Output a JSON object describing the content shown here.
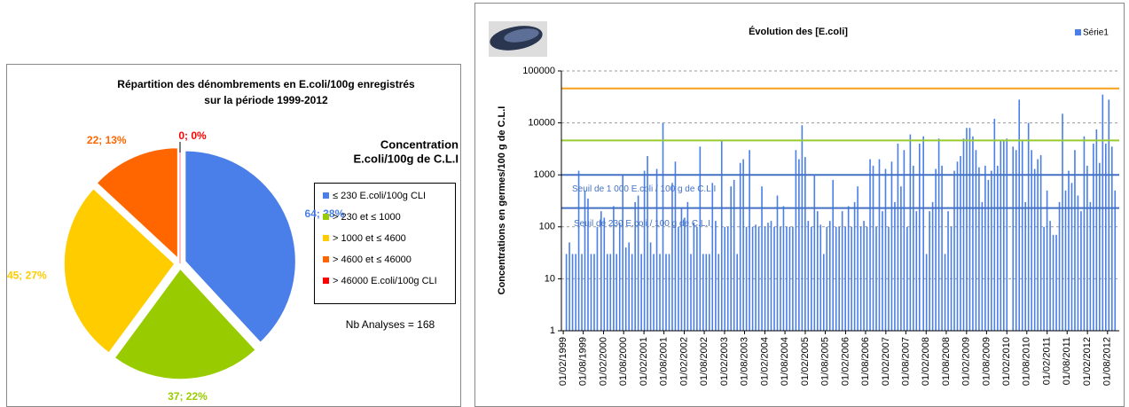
{
  "chart_data": [
    {
      "type": "pie",
      "title_lines": [
        "Répartition des dénombrements en E.coli/100g enregistrés",
        "sur la période 1999-2012"
      ],
      "legend_title_lines": [
        "Concentration",
        "E.coli/100g de C.L.I"
      ],
      "categories": [
        "≤ 230 E.coli/100g CLI",
        "> 230 et ≤ 1000",
        "> 1000 et ≤ 4600",
        "> 4600 et ≤ 46000",
        "> 46000 E.coli/100g CLI"
      ],
      "values": [
        64,
        37,
        45,
        22,
        0
      ],
      "value_labels": [
        "64; 38%",
        "37; 22%",
        "45; 27%",
        "22; 13%",
        "0; 0%"
      ],
      "colors": [
        "#4a7ee8",
        "#99cc00",
        "#ffcc00",
        "#ff6600",
        "#ff0000"
      ],
      "annotation": "Nb Analyses = 168"
    },
    {
      "type": "bar",
      "title": "Évolution des [E.coli]",
      "y_label": "Concentrations en germes/100 g de C.L.I",
      "log_scale": true,
      "grid": true,
      "ylim": [
        1,
        100000
      ],
      "yticks": [
        1,
        10,
        100,
        1000,
        10000,
        100000
      ],
      "xlim": [
        "15/01/1999",
        "15/11/2012"
      ],
      "xticks": [
        "01/02/1999",
        "01/08/1999",
        "01/02/2000",
        "01/08/2000",
        "01/02/2001",
        "01/08/2001",
        "01/02/2002",
        "01/08/2002",
        "01/02/2003",
        "01/08/2003",
        "01/02/2004",
        "01/08/2004",
        "01/02/2005",
        "01/08/2005",
        "01/02/2006",
        "01/08/2006",
        "01/02/2007",
        "01/08/2007",
        "01/02/2008",
        "01/08/2008",
        "01/02/2009",
        "01/08/2009",
        "01/02/2010",
        "01/08/2010",
        "01/02/2011",
        "01/08/2011",
        "01/02/2012",
        "01/08/2012"
      ],
      "reference_lines": [
        {
          "value": 46000,
          "color": "#f7a11a"
        },
        {
          "value": 4600,
          "color": "#99cc33"
        },
        {
          "value": 1000,
          "color": "#4472c4",
          "label": "Seuil de 1 000 E.coli / 100 g de C.L.I"
        },
        {
          "value": 230,
          "color": "#4472c4",
          "label": "Seuil de 230 E.coli / 100 g de C.L.I"
        }
      ],
      "series": [
        {
          "name": "Série1",
          "color": "#4a7ee8",
          "x": [
            "01/03/1999",
            "29/03/1999",
            "26/04/1999",
            "25/05/1999",
            "21/06/1999",
            "19/07/1999",
            "16/08/1999",
            "13/09/1999",
            "11/10/1999",
            "08/11/1999",
            "06/12/1999",
            "10/01/2000",
            "07/02/2000",
            "06/03/2000",
            "03/04/2000",
            "02/05/2000",
            "29/05/2000",
            "26/06/2000",
            "24/07/2000",
            "21/08/2000",
            "18/09/2000",
            "16/10/2000",
            "13/11/2000",
            "11/12/2000",
            "08/01/2001",
            "05/02/2001",
            "05/03/2001",
            "02/04/2001",
            "30/04/2001",
            "28/05/2001",
            "25/06/2001",
            "23/07/2001",
            "20/08/2001",
            "17/09/2001",
            "15/10/2001",
            "12/11/2001",
            "10/12/2001",
            "07/01/2002",
            "04/02/2002",
            "04/03/2002",
            "02/04/2002",
            "29/04/2002",
            "27/05/2002",
            "24/06/2002",
            "22/07/2002",
            "19/08/2002",
            "16/09/2002",
            "14/10/2002",
            "12/11/2002",
            "09/12/2002",
            "06/01/2003",
            "03/02/2003",
            "03/03/2003",
            "31/03/2003",
            "28/04/2003",
            "26/05/2003",
            "23/06/2003",
            "21/07/2003",
            "18/08/2003",
            "15/09/2003",
            "13/10/2003",
            "10/11/2003",
            "08/12/2003",
            "05/01/2004",
            "02/02/2004",
            "01/03/2004",
            "29/03/2004",
            "26/04/2004",
            "24/05/2004",
            "21/06/2004",
            "19/07/2004",
            "16/08/2004",
            "13/09/2004",
            "11/10/2004",
            "08/11/2004",
            "06/12/2004",
            "03/01/2005",
            "31/01/2005",
            "28/02/2005",
            "28/03/2005",
            "25/04/2005",
            "23/05/2005",
            "20/06/2005",
            "18/07/2005",
            "15/08/2005",
            "12/09/2005",
            "10/10/2005",
            "07/11/2005",
            "05/12/2005",
            "02/01/2006",
            "30/01/2006",
            "27/02/2006",
            "27/03/2006",
            "24/04/2006",
            "22/05/2006",
            "19/06/2006",
            "17/07/2006",
            "14/08/2006",
            "11/09/2006",
            "09/10/2006",
            "06/11/2006",
            "04/12/2006",
            "01/01/2007",
            "29/01/2007",
            "26/02/2007",
            "26/03/2007",
            "23/04/2007",
            "21/05/2007",
            "18/06/2007",
            "16/07/2007",
            "13/08/2007",
            "10/09/2007",
            "08/10/2007",
            "05/11/2007",
            "03/12/2007",
            "07/01/2008",
            "04/02/2008",
            "03/03/2008",
            "31/03/2008",
            "28/04/2008",
            "26/05/2008",
            "23/06/2008",
            "21/07/2008",
            "18/08/2008",
            "15/09/2008",
            "13/10/2008",
            "10/11/2008",
            "08/12/2008",
            "05/01/2009",
            "02/02/2009",
            "02/03/2009",
            "30/03/2009",
            "27/04/2009",
            "25/05/2009",
            "22/06/2009",
            "20/07/2009",
            "17/08/2009",
            "14/09/2009",
            "12/10/2009",
            "09/11/2009",
            "07/12/2009",
            "04/01/2010",
            "01/02/2010",
            "29/03/2010",
            "26/04/2010",
            "24/05/2010",
            "21/06/2010",
            "19/07/2010",
            "16/08/2010",
            "13/09/2010",
            "11/10/2010",
            "08/11/2010",
            "06/12/2010",
            "03/01/2011",
            "31/01/2011",
            "28/02/2011",
            "28/03/2011",
            "25/04/2011",
            "23/05/2011",
            "20/06/2011",
            "18/07/2011",
            "15/08/2011",
            "12/09/2011",
            "10/10/2011",
            "07/11/2011",
            "05/12/2011",
            "02/01/2012",
            "30/01/2012",
            "27/02/2012",
            "26/03/2012",
            "23/04/2012",
            "21/05/2012",
            "18/06/2012",
            "16/07/2012",
            "13/08/2012",
            "10/09/2012",
            "08/10/2012"
          ],
          "values": [
            30,
            50,
            30,
            30,
            1200,
            30,
            500,
            350,
            30,
            30,
            100,
            200,
            150,
            30,
            30,
            250,
            30,
            120,
            1000,
            40,
            50,
            30,
            300,
            400,
            30,
            1200,
            2300,
            50,
            30,
            1300,
            30,
            10000,
            30,
            30,
            700,
            1800,
            100,
            230,
            150,
            300,
            30,
            120,
            100,
            3500,
            30,
            30,
            30,
            700,
            130,
            30,
            4500,
            100,
            100,
            600,
            800,
            30,
            1700,
            2000,
            100,
            3000,
            100,
            110,
            100,
            600,
            100,
            120,
            130,
            100,
            400,
            100,
            250,
            100,
            100,
            100,
            3000,
            2000,
            9000,
            2200,
            130,
            100,
            1000,
            200,
            110,
            30,
            100,
            130,
            800,
            100,
            100,
            200,
            100,
            250,
            100,
            300,
            600,
            100,
            130,
            100,
            2000,
            1500,
            100,
            2000,
            200,
            1300,
            100,
            1800,
            300,
            4000,
            600,
            3000,
            100,
            6000,
            1500,
            200,
            4000,
            5500,
            30,
            200,
            300,
            1300,
            5000,
            1500,
            30,
            200,
            100,
            1200,
            1800,
            2300,
            5000,
            8000,
            8000,
            5500,
            3000,
            1400,
            300,
            1500,
            800,
            1200,
            12000,
            1500,
            4500,
            4500,
            5000,
            3500,
            3000,
            28000,
            4500,
            300,
            10000,
            3000,
            1300,
            2000,
            2400,
            100,
            500,
            130,
            70,
            70,
            300,
            15000,
            500,
            1200,
            700,
            3000,
            400,
            200,
            5500,
            1500,
            300,
            4000,
            7500,
            1700,
            35000,
            4000,
            28000,
            3500,
            500
          ]
        }
      ]
    }
  ]
}
